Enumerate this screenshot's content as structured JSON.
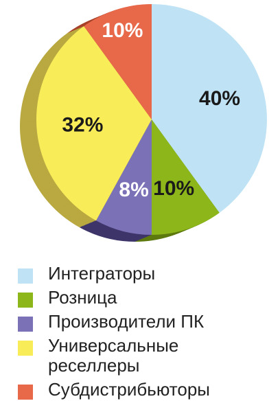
{
  "chart_data": {
    "type": "pie",
    "series": [
      {
        "label": "Интеграторы",
        "value": 40,
        "display": "40%",
        "color": "#bfe3f5",
        "side": "#8fb4c4"
      },
      {
        "label": "Розница",
        "value": 10,
        "display": "10%",
        "color": "#8cb619",
        "side": "#5e7a10"
      },
      {
        "label": "Производители ПК",
        "value": 8,
        "display": "8%",
        "color": "#7b71b6",
        "side": "#3e356a"
      },
      {
        "label": "Универсальные реселлеры",
        "value": 32,
        "display": "32%",
        "color": "#f8ec59",
        "side": "#b9a940"
      },
      {
        "label": "Субдистрибьюторы",
        "value": 10,
        "display": "10%",
        "color": "#e8684a",
        "side": "#a8442c"
      }
    ]
  }
}
